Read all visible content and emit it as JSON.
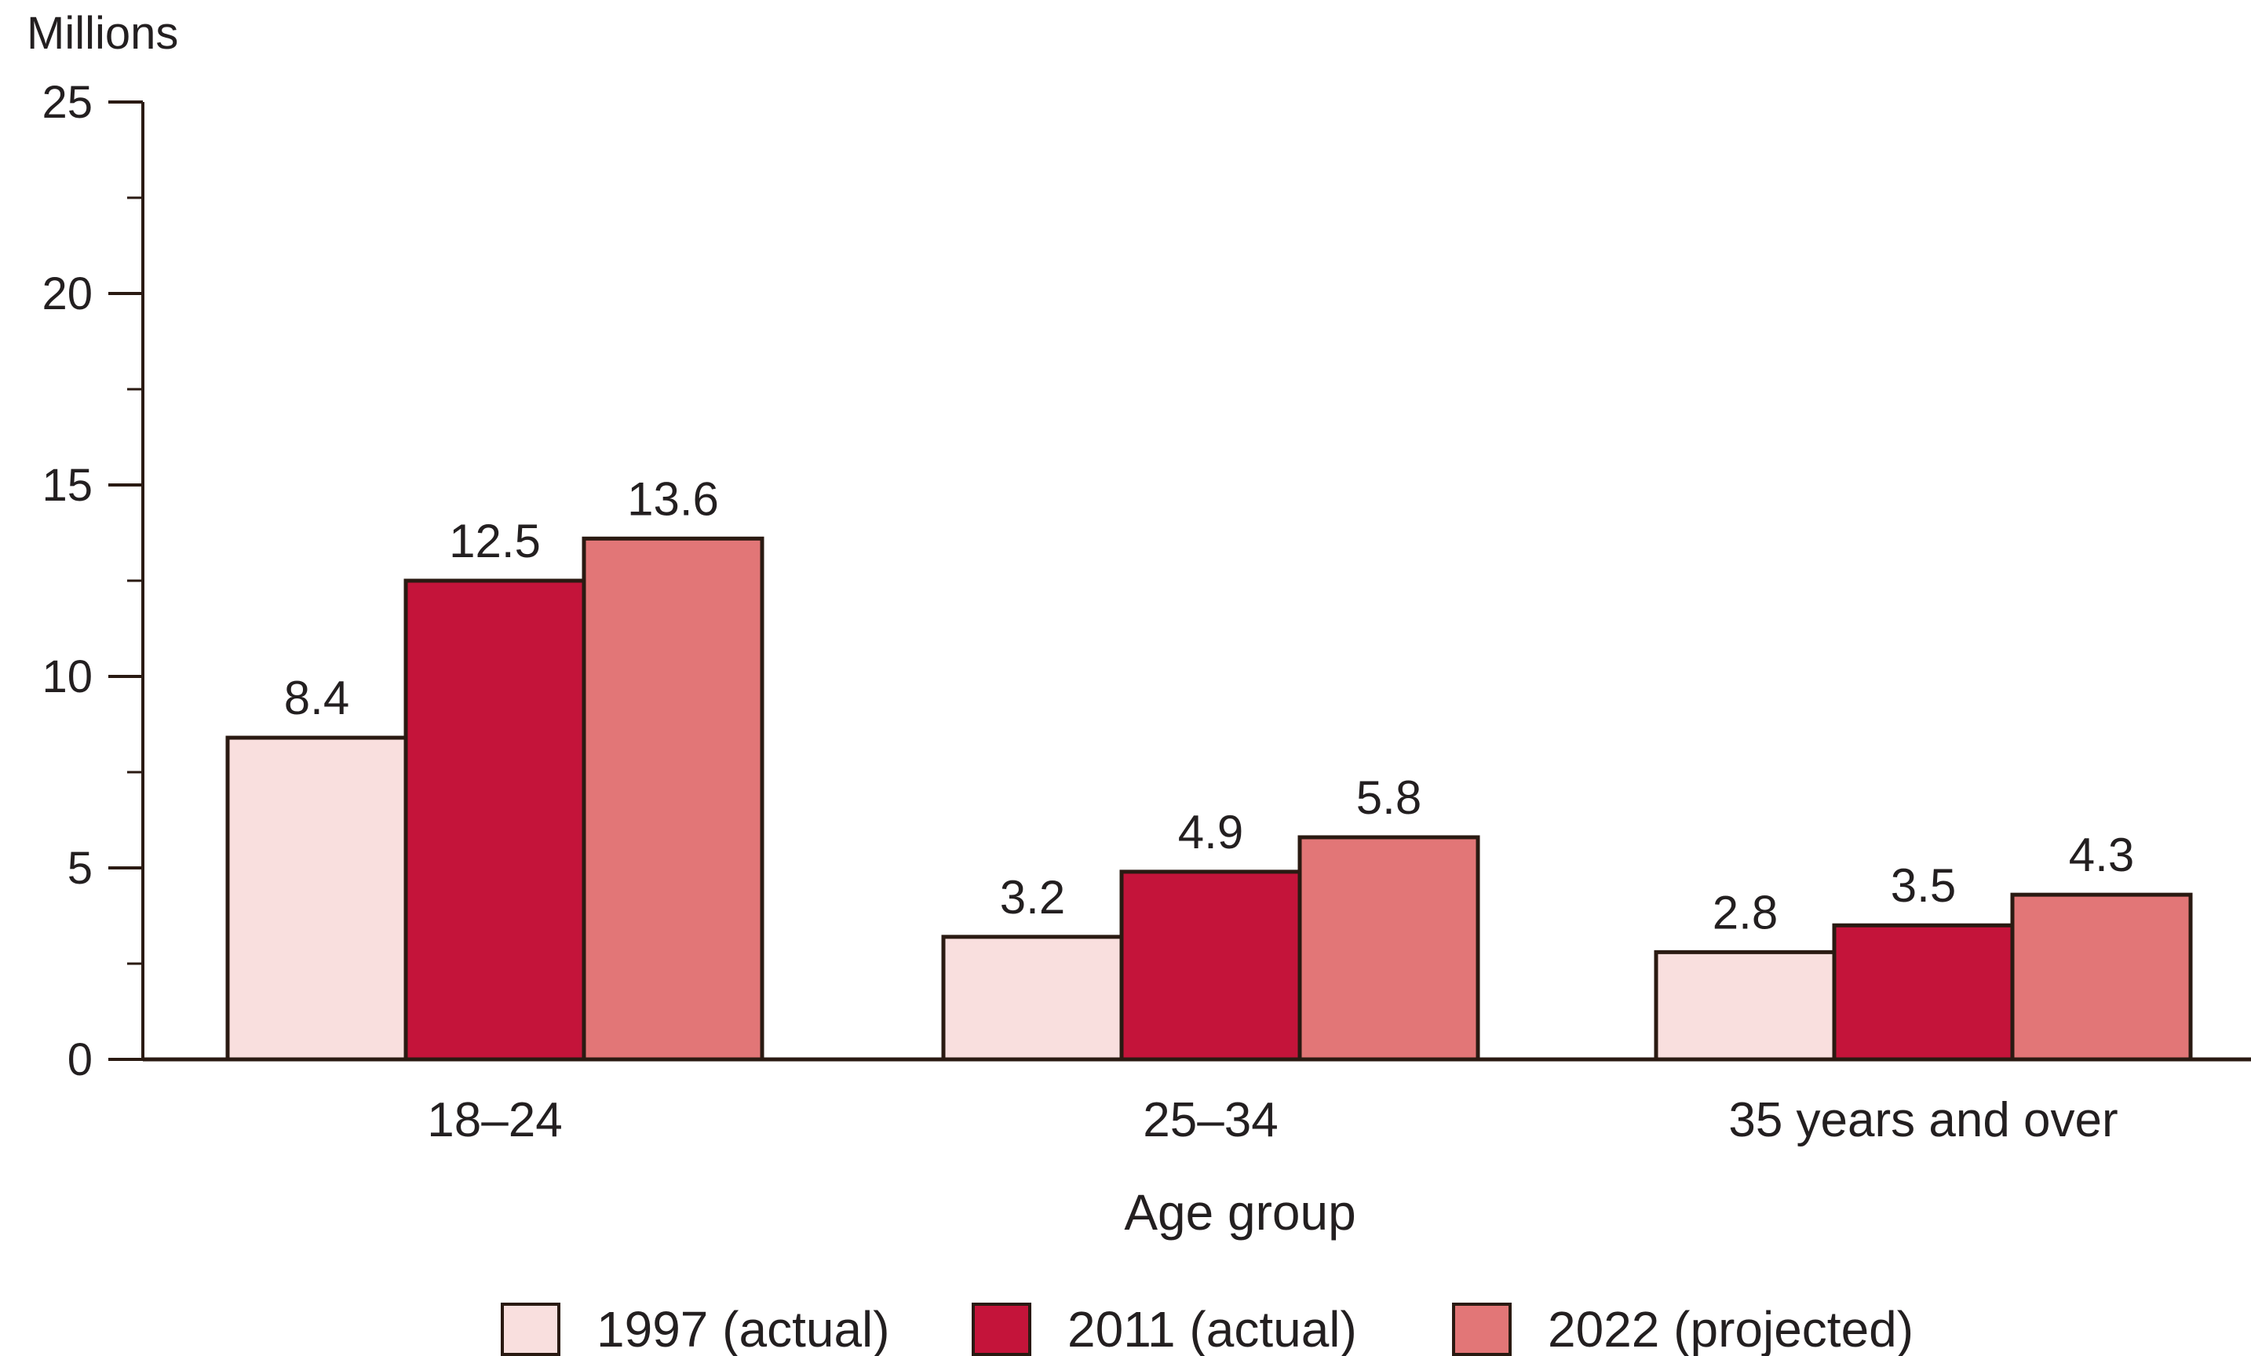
{
  "chart_data": {
    "type": "bar",
    "title": "",
    "unit_label": "Millions",
    "xlabel": "Age group",
    "ylabel": "",
    "ylim": [
      0,
      25
    ],
    "yticks": [
      0,
      5,
      10,
      15,
      20,
      25
    ],
    "minor_tick_step": 2.5,
    "grid": false,
    "legend_position": "bottom",
    "categories": [
      "18–24",
      "25–34",
      "35 years and over"
    ],
    "series": [
      {
        "name": "1997 (actual)",
        "values": [
          8.4,
          3.2,
          2.8
        ],
        "labels": [
          "8.4",
          "3.2",
          "2.8"
        ],
        "color": "#f9dfde"
      },
      {
        "name": "2011 (actual)",
        "values": [
          12.5,
          4.9,
          3.5
        ],
        "labels": [
          "12.5",
          "4.9",
          "3.5"
        ],
        "color": "#c4143a"
      },
      {
        "name": "2022 (projected)",
        "values": [
          13.6,
          5.8,
          4.3
        ],
        "labels": [
          "13.6",
          "5.8",
          "4.3"
        ],
        "color": "#e27677"
      }
    ],
    "colors": {
      "outline": "#2a1a12",
      "axis": "#2a1a12",
      "text": "#231f20"
    }
  }
}
